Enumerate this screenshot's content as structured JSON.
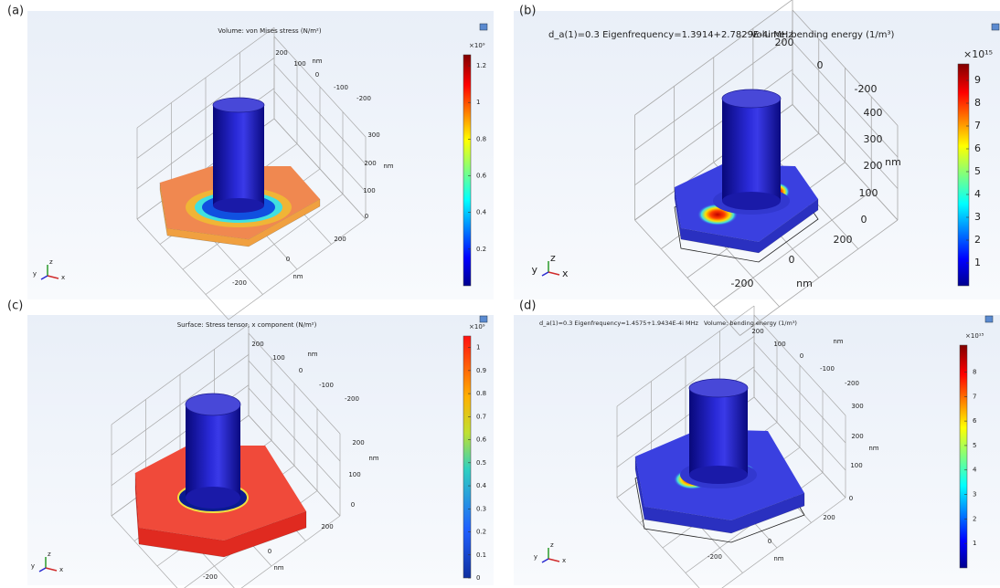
{
  "panels": [
    {
      "label": "(a)",
      "title": "Volume: von Mises stress (N/m²)",
      "colorbar": {
        "exponent": "×10⁹",
        "lim": [
          0,
          1.26
        ],
        "ticks": [
          0.2,
          0.4,
          0.6,
          0.8,
          1,
          1.2
        ]
      },
      "axis_labels": [
        "200",
        "100",
        "0",
        "-100",
        "-200",
        "nm",
        "300",
        "200",
        "nm",
        "100",
        "0",
        "200",
        "0",
        "nm",
        "-200"
      ],
      "triad": [
        "z",
        "y",
        "x"
      ]
    },
    {
      "label": "(b)",
      "header": "d_a(1)=0.3 Eigenfrequency=1.3914+2.7829E-4i MHz",
      "title": "Volume: bending energy (1/m³)",
      "colorbar": {
        "exponent": "×10¹⁵",
        "lim": [
          0,
          9.72
        ],
        "ticks": [
          1,
          2,
          3,
          4,
          5,
          6,
          7,
          8,
          9
        ]
      },
      "axis_labels": [
        "200",
        "0",
        "-200",
        "400",
        "300",
        "200",
        "nm",
        "100",
        "0",
        "200",
        "0",
        "nm",
        "-200"
      ],
      "triad": [
        "z",
        "y",
        "x"
      ]
    },
    {
      "label": "(c)",
      "title": "Surface: Stress tensor, x component (N/m²)",
      "colorbar": {
        "exponent": "×10⁹",
        "lim": [
          0,
          1.05
        ],
        "ticks": [
          0,
          0.1,
          0.2,
          0.3,
          0.4,
          0.5,
          0.6,
          0.7,
          0.8,
          0.9,
          1
        ]
      },
      "axis_labels": [
        "200",
        "nm",
        "100",
        "0",
        "-100",
        "-200",
        "200",
        "nm",
        "100",
        "0",
        "200",
        "0",
        "nm",
        "-200"
      ],
      "triad": [
        "z",
        "y",
        "x"
      ]
    },
    {
      "label": "(d)",
      "header": "d_a(1)=0.3 Eigenfrequency=1.4575+1.9434E-4i MHz",
      "title": "Volume: bending energy (1/m³)",
      "colorbar": {
        "exponent": "×10¹⁵",
        "lim": [
          0,
          9.1
        ],
        "ticks": [
          1,
          2,
          3,
          4,
          5,
          6,
          7,
          8
        ]
      },
      "axis_labels": [
        "200",
        "100",
        "0",
        "nm",
        "-100",
        "-200",
        "300",
        "200",
        "nm",
        "100",
        "0",
        "200",
        "0",
        "nm",
        "-200"
      ],
      "triad": [
        "z",
        "y",
        "x"
      ]
    }
  ]
}
